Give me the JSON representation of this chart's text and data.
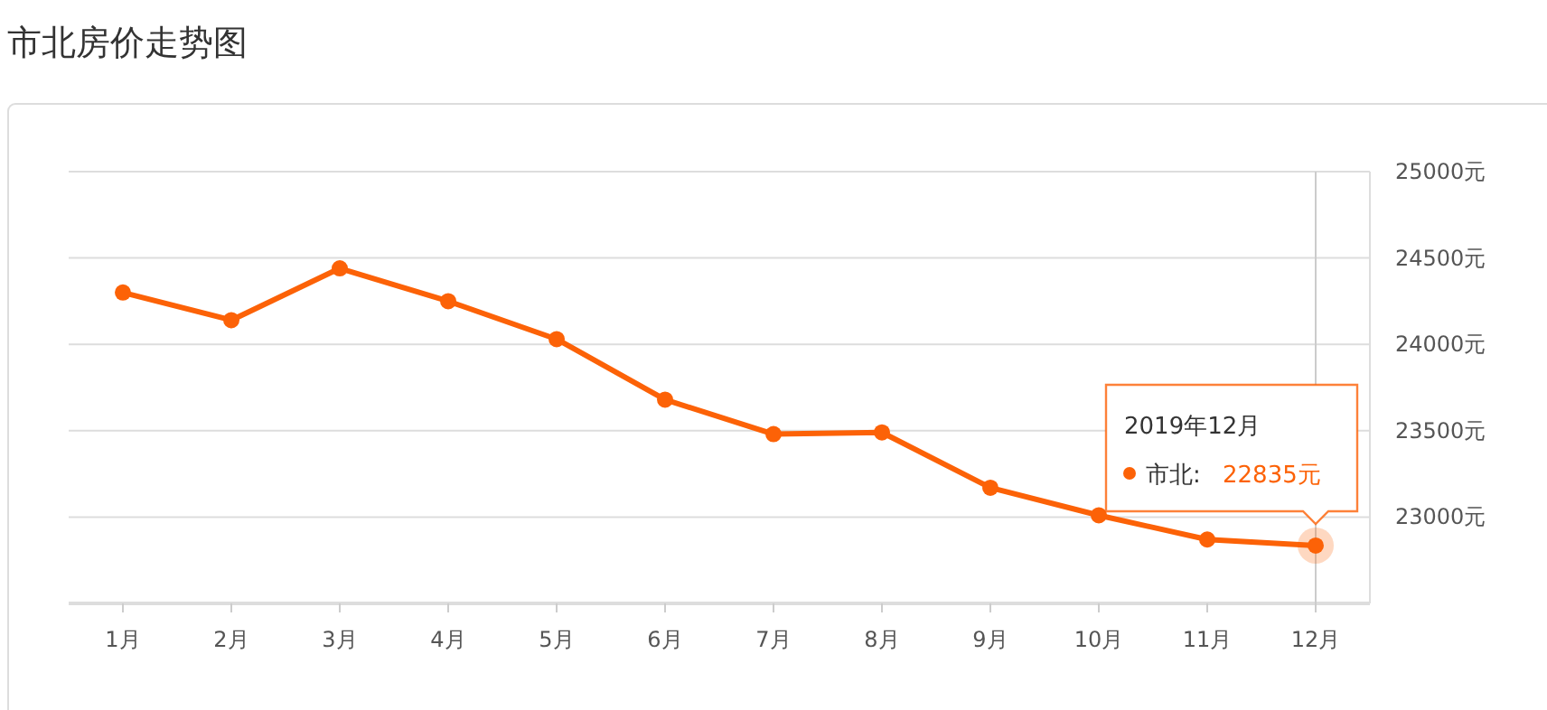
{
  "chart_data": {
    "type": "line",
    "title": "市北房价走势图",
    "categories": [
      "1月",
      "2月",
      "3月",
      "4月",
      "5月",
      "6月",
      "7月",
      "8月",
      "9月",
      "10月",
      "11月",
      "12月"
    ],
    "series": [
      {
        "color": "#fc6207",
        "values": [
          24300,
          24140,
          24440,
          24250,
          24030,
          23680,
          23480,
          23490,
          23170,
          23010,
          22870,
          22835
        ]
      }
    ],
    "ylim": [
      22500,
      25000
    ],
    "yticks": [
      {
        "value": 22500,
        "label": null
      },
      {
        "value": 23000,
        "label": "23000元"
      },
      {
        "value": 23500,
        "label": "23500元"
      },
      {
        "value": 24000,
        "label": "24000元"
      },
      {
        "value": 24500,
        "label": "24500元"
      },
      {
        "value": 25000,
        "label": "25000元"
      }
    ],
    "grid": "y",
    "marker": "circle",
    "line_style": "solid",
    "ref_lines": [
      {
        "axis": "x",
        "value": "12月",
        "color": "#cccccc"
      }
    ],
    "annotations": [
      "2019年12月",
      "市北: 22835元"
    ]
  }
}
